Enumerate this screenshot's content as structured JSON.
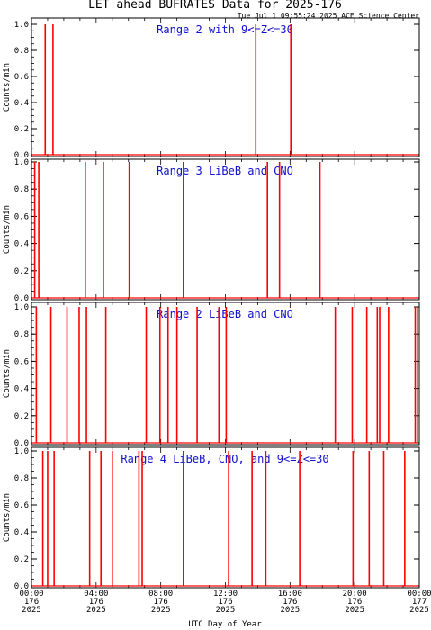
{
  "title": "LET ahead BUFRATES Data for 2025-176",
  "timestamp": "Tue Jul  1 09:55:24 2025 ACE Science Center",
  "xlabel": "UTC Day of Year",
  "colors": {
    "data": "#ff0000",
    "panel_label": "#1010d0",
    "axes": "#000000"
  },
  "chart_data": [
    {
      "type": "line",
      "title": "Range 2 with 9<=Z<=30",
      "ylabel": "Counts/min",
      "ylim": [
        0,
        1.0
      ],
      "yticks": [
        "0.0",
        "0.2",
        "0.4",
        "0.6",
        "0.8",
        "1.0"
      ],
      "xlim": [
        0,
        24
      ],
      "spikes_hours": [
        0.85,
        1.33,
        13.88,
        16.05
      ]
    },
    {
      "type": "line",
      "title": "Range 3 LiBeB and CNO",
      "ylabel": "Counts/min",
      "ylim": [
        0,
        1.0
      ],
      "yticks": [
        "0.0",
        "0.2",
        "0.4",
        "0.6",
        "0.8",
        "1.0"
      ],
      "xlim": [
        0,
        24
      ],
      "spikes_hours": [
        0.2,
        0.45,
        3.33,
        4.45,
        6.05,
        9.4,
        14.6,
        15.35,
        17.85
      ]
    },
    {
      "type": "line",
      "title": "Range 2 LiBeB and CNO",
      "ylabel": "Counts/min",
      "ylim": [
        0,
        1.0
      ],
      "yticks": [
        "0.0",
        "0.2",
        "0.4",
        "0.6",
        "0.8",
        "1.0"
      ],
      "xlim": [
        0,
        24
      ],
      "spikes_hours": [
        0.3,
        1.2,
        2.2,
        2.95,
        3.4,
        4.6,
        7.1,
        7.95,
        8.45,
        9.0,
        10.25,
        11.6,
        12.05,
        18.8,
        19.85,
        20.75,
        21.4,
        21.55,
        22.1,
        23.75,
        23.9
      ]
    },
    {
      "type": "line",
      "title": "Range 4 LiBeB, CNO, and 9<=Z<=30",
      "ylabel": "Counts/min",
      "ylim": [
        0,
        1.0
      ],
      "yticks": [
        "0.0",
        "0.2",
        "0.4",
        "0.6",
        "0.8",
        "1.0"
      ],
      "xlim": [
        0,
        24
      ],
      "spikes_hours": [
        0.7,
        1.0,
        1.4,
        3.6,
        4.3,
        5.0,
        6.65,
        6.85,
        9.4,
        12.2,
        13.65,
        14.5,
        16.6,
        19.9,
        20.9,
        21.8,
        23.1
      ]
    }
  ],
  "xticks": [
    {
      "time": "00:00",
      "doy": "176",
      "year": "2025"
    },
    {
      "time": "04:00",
      "doy": "176",
      "year": "2025"
    },
    {
      "time": "08:00",
      "doy": "176",
      "year": "2025"
    },
    {
      "time": "12:00",
      "doy": "176",
      "year": "2025"
    },
    {
      "time": "16:00",
      "doy": "176",
      "year": "2025"
    },
    {
      "time": "20:00",
      "doy": "176",
      "year": "2025"
    },
    {
      "time": "00:00",
      "doy": "177",
      "year": "2025"
    }
  ]
}
